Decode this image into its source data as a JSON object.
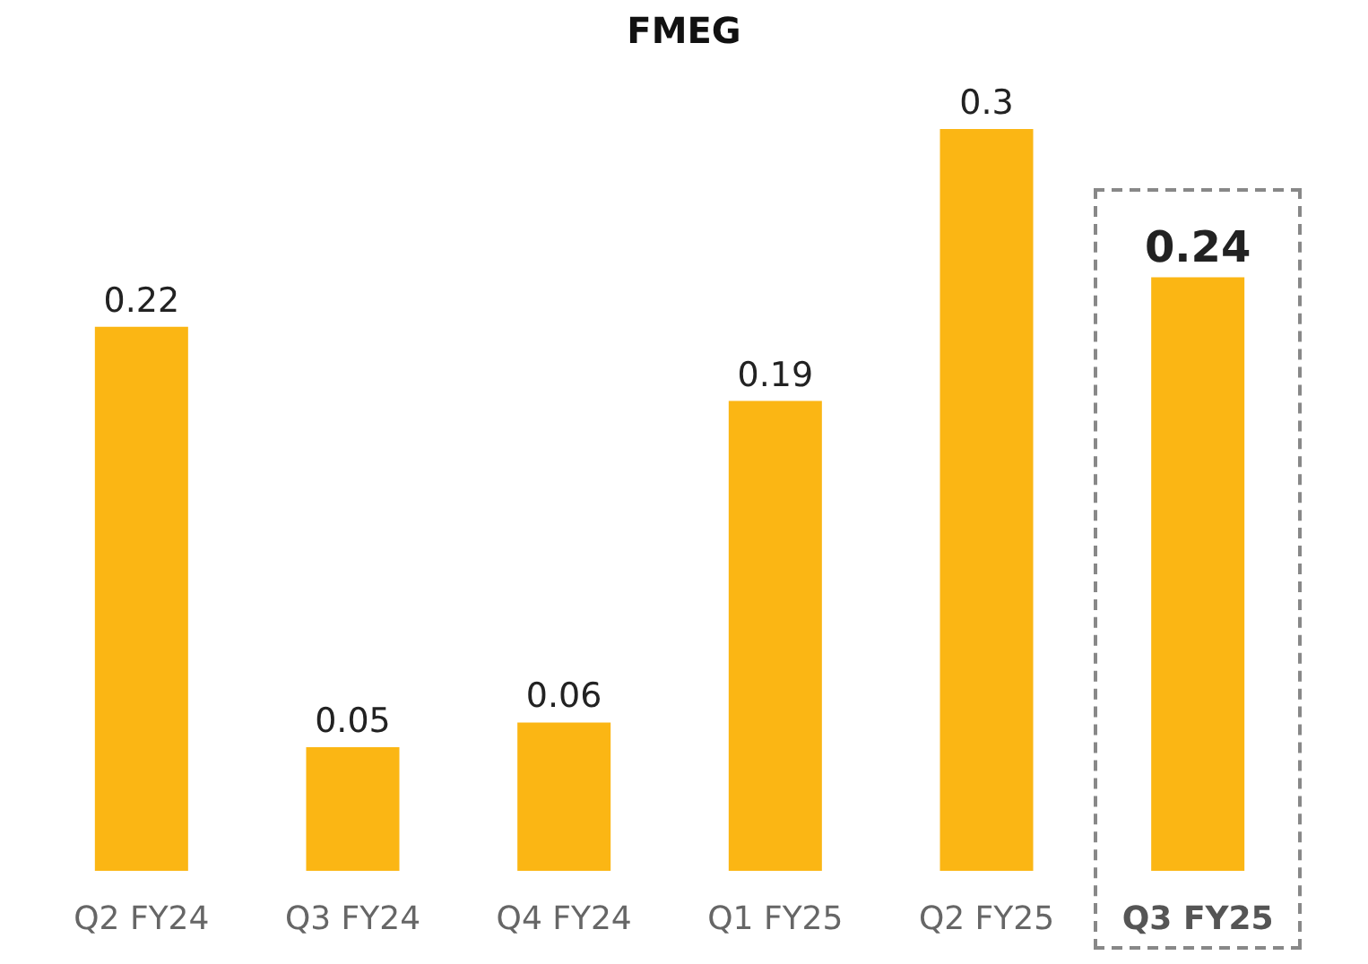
{
  "chart_data": {
    "type": "bar",
    "title": "FMEG",
    "categories": [
      "Q2 FY24",
      "Q3 FY24",
      "Q4 FY24",
      "Q1 FY25",
      "Q2 FY25",
      "Q3 FY25"
    ],
    "values": [
      0.22,
      0.05,
      0.06,
      0.19,
      0.3,
      0.24
    ],
    "color": "#fbb614",
    "data_labels": true
  }
}
